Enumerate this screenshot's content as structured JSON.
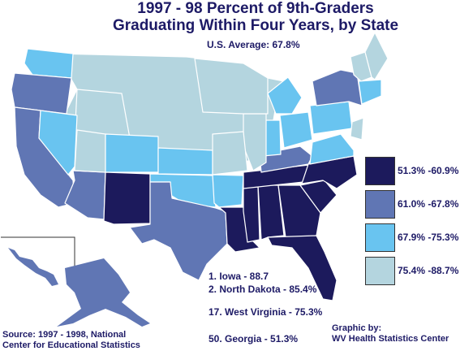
{
  "title_line1": "1997 - 98 Percent of 9th-Graders",
  "title_line2": "Graduating Within Four Years, by State",
  "subtitle": "U.S. Average: 67.8%",
  "legend": [
    {
      "label": "51.3% -60.9%",
      "color": "#1c1a5c"
    },
    {
      "label": "61.0% -67.8%",
      "color": "#6076b4"
    },
    {
      "label": "67.9% -75.3%",
      "color": "#69c4f0"
    },
    {
      "label": "75.4% -88.7%",
      "color": "#b4d5df"
    }
  ],
  "rankings": [
    "1. Iowa - 88.7",
    "2. North Dakota - 85.4%",
    "17. West Virginia - 75.3%",
    "50. Georgia - 51.3%"
  ],
  "source_line1": "Source: 1997 - 1998, National",
  "source_line2": "Center for Educational Statistics",
  "credit_line1": "Graphic by:",
  "credit_line2": "WV Health Statistics Center"
}
